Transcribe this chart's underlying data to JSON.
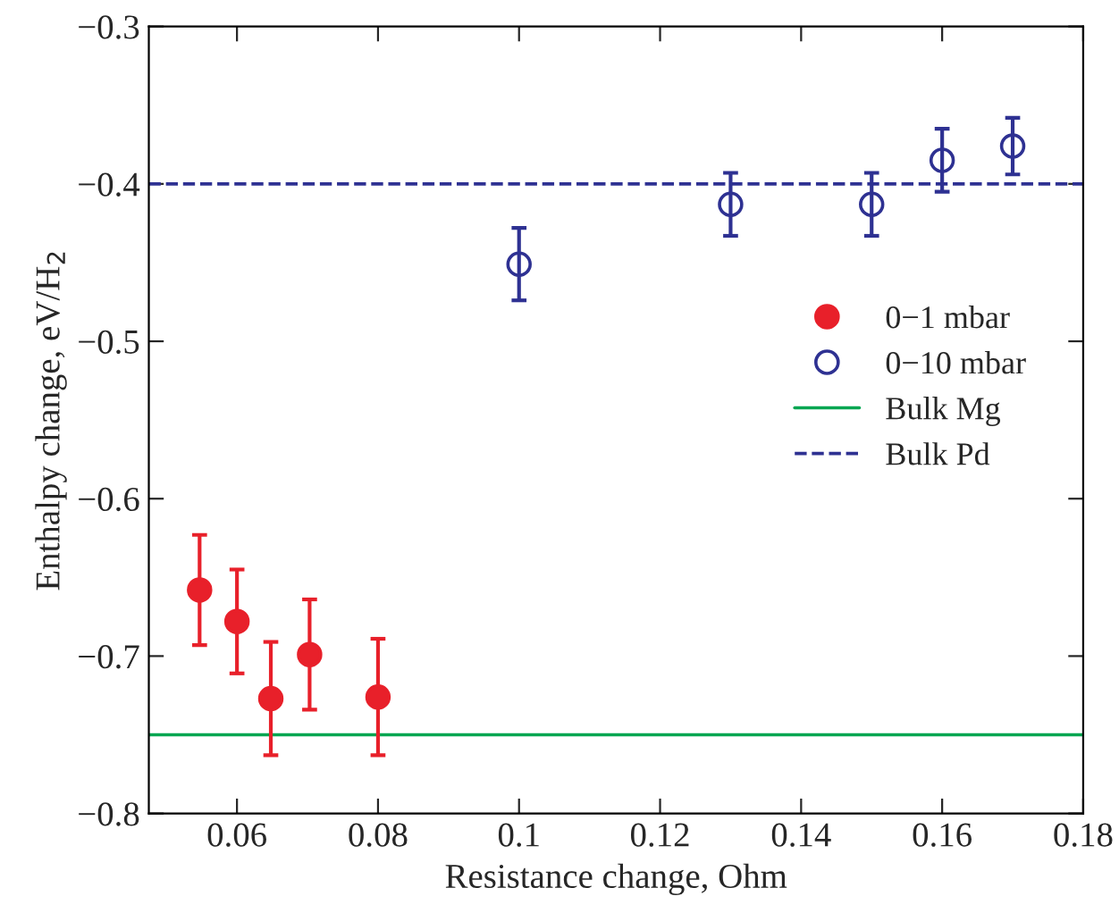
{
  "chart_data": {
    "type": "scatter",
    "xlabel": "Resistance change, Ohm",
    "ylabel": "Enthalpy change, eV/H$_{2}$",
    "series": [
      {
        "name": "0−1 mbar",
        "color": "#e8202a",
        "x": [
          0.0547,
          0.06,
          0.0648,
          0.0703,
          0.08
        ],
        "values": [
          -0.658,
          -0.678,
          -0.727,
          -0.699,
          -0.726
        ],
        "errors": [
          0.035,
          0.033,
          0.036,
          0.035,
          0.037
        ]
      },
      {
        "name": "0−10 mbar",
        "color": "#2e3192",
        "x": [
          0.1,
          0.13,
          0.15,
          0.16,
          0.17
        ],
        "values": [
          -0.451,
          -0.413,
          -0.413,
          -0.385,
          -0.376
        ],
        "errors": [
          0.023,
          0.02,
          0.02,
          0.02,
          0.018
        ]
      }
    ],
    "ref_lines": [
      {
        "axis": "y",
        "value": -0.75,
        "label": "Bulk Mg",
        "color": "#00a651",
        "line_style": "solid"
      },
      {
        "axis": "y",
        "value": -0.4,
        "label": "Bulk Pd",
        "color": "#2e3192",
        "line_style": "dashed"
      }
    ],
    "xlim": [
      0.0475,
      0.18
    ],
    "xticks": [
      0.06,
      0.08,
      0.1,
      0.12,
      0.14,
      0.16,
      0.18
    ],
    "ylim": [
      -0.8,
      -0.3
    ],
    "yticks": [
      {
        "value": -0.8,
        "label": "−0.8"
      },
      {
        "value": -0.7,
        "label": "−0.7"
      },
      {
        "value": -0.6,
        "label": "−0.6"
      },
      {
        "value": -0.5,
        "label": "−0.5"
      },
      {
        "value": -0.4,
        "label": "−0.4"
      },
      {
        "value": -0.3,
        "label": "−0.3"
      }
    ],
    "marker": "circle",
    "grid": false,
    "legend": "center right"
  }
}
